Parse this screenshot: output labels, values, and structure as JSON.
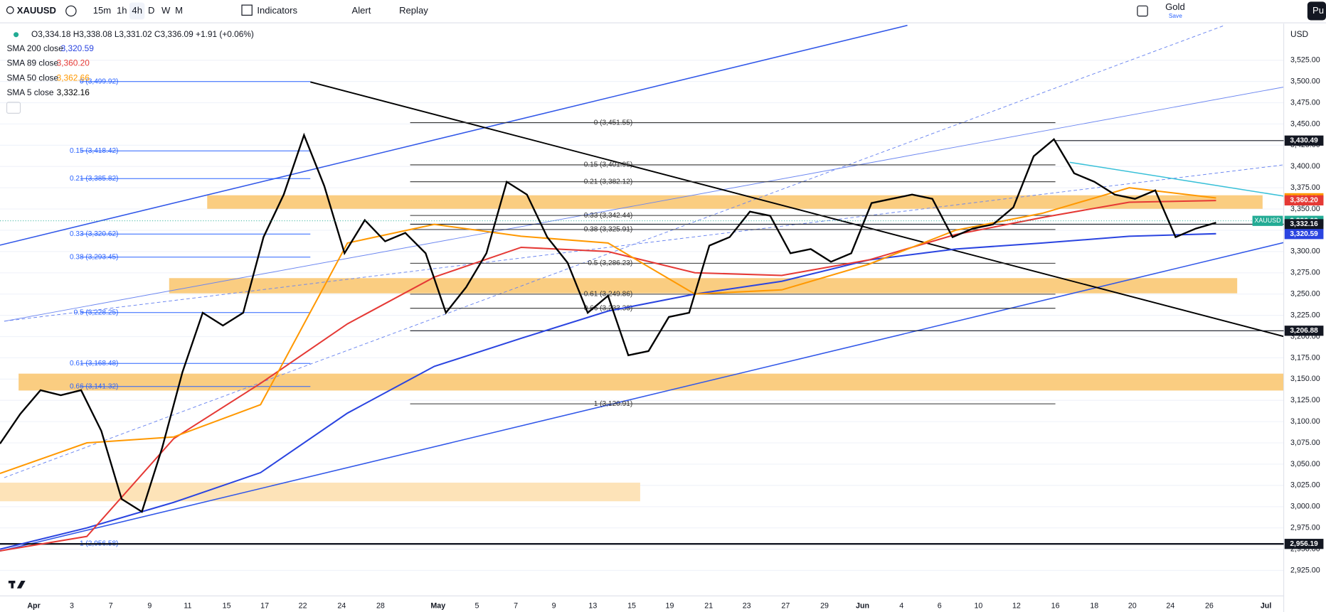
{
  "toolbar": {
    "symbol": "XAUUSD",
    "intervals": [
      "15m",
      "1h",
      "4h",
      "D",
      "W",
      "M"
    ],
    "indicators": "Indicators",
    "alert": "Alert",
    "replay": "Replay",
    "layout_name": "Gold",
    "layout_status": "Save",
    "publish": "Pu"
  },
  "legend": {
    "ohlc": "O3,334.18 H3,338.08 L3,331.02 C3,336.09 +1.91 (+0.06%)",
    "currency": "USD"
  },
  "chart_data": {
    "type": "line",
    "ylim": [
      2895,
      3566
    ],
    "yticks": [
      {
        "value": 2925,
        "label": "2,925.00"
      },
      {
        "value": 2950,
        "label": "2,950.00"
      },
      {
        "value": 2975,
        "label": "2,975.00"
      },
      {
        "value": 3000,
        "label": "3,000.00"
      },
      {
        "value": 3025,
        "label": "3,025.00"
      },
      {
        "value": 3050,
        "label": "3,050.00"
      },
      {
        "value": 3075,
        "label": "3,075.00"
      },
      {
        "value": 3100,
        "label": "3,100.00"
      },
      {
        "value": 3125,
        "label": "3,125.00"
      },
      {
        "value": 3150,
        "label": "3,150.00"
      },
      {
        "value": 3175,
        "label": "3,175.00"
      },
      {
        "value": 3200,
        "label": "3,200.00"
      },
      {
        "value": 3225,
        "label": "3,225.00"
      },
      {
        "value": 3250,
        "label": "3,250.00"
      },
      {
        "value": 3275,
        "label": "3,275.00"
      },
      {
        "value": 3300,
        "label": "3,300.00"
      },
      {
        "value": 3325,
        "label": "3,325.00"
      },
      {
        "value": 3350,
        "label": "3,350.00"
      },
      {
        "value": 3375,
        "label": "3,375.00"
      },
      {
        "value": 3400,
        "label": "3,400.00"
      },
      {
        "value": 3425,
        "label": "3,425.00"
      },
      {
        "value": 3450,
        "label": "3,450.00"
      },
      {
        "value": 3475,
        "label": "3,475.00"
      },
      {
        "value": 3500,
        "label": "3,500.00"
      },
      {
        "value": 3525,
        "label": "3,525.00"
      }
    ],
    "x_labels": [
      "Apr",
      "3",
      "7",
      "9",
      "11",
      "15",
      "17",
      "22",
      "24",
      "28",
      "May",
      "5",
      "7",
      "9",
      "13",
      "15",
      "19",
      "21",
      "23",
      "27",
      "29",
      "Jun",
      "4",
      "6",
      "10",
      "12",
      "16",
      "18",
      "20",
      "24",
      "26",
      "Jul"
    ],
    "series": [
      {
        "name": "SMA 200 close",
        "legend_value": "3,320.59",
        "color": "#2a44e0",
        "values": [
          2950,
          2975,
          3005,
          3040,
          3110,
          3165,
          3198,
          3230,
          3250,
          3265,
          3290,
          3303,
          3310,
          3318,
          3321
        ]
      },
      {
        "name": "SMA 89 close",
        "legend_value": "3,360.20",
        "color": "#e53935",
        "values": [
          2948,
          2965,
          3080,
          3145,
          3215,
          3270,
          3305,
          3300,
          3275,
          3272,
          3290,
          3320,
          3340,
          3358,
          3360
        ]
      },
      {
        "name": "SMA 50 close",
        "legend_value": "3,362.66",
        "color": "#ff9800",
        "values": [
          3039,
          3075,
          3082,
          3120,
          3310,
          3332,
          3318,
          3310,
          3250,
          3255,
          3285,
          3325,
          3345,
          3375,
          3363
        ]
      },
      {
        "name": "SMA 5 close",
        "legend_value": "3,332.16",
        "color": "#000000",
        "values": [
          3074,
          3109,
          3137,
          3131,
          3137,
          3089,
          3009,
          2994,
          3069,
          3158,
          3228,
          3213,
          3228,
          3317,
          3367,
          3437,
          3377,
          3298,
          3337,
          3312,
          3322,
          3298,
          3228,
          3258,
          3298,
          3382,
          3367,
          3317,
          3287,
          3228,
          3248,
          3178,
          3183,
          3223,
          3228,
          3307,
          3317,
          3347,
          3342,
          3298,
          3303,
          3288,
          3298,
          3357,
          3362,
          3367,
          3362,
          3317,
          3327,
          3332,
          3352,
          3412,
          3432,
          3392,
          3382,
          3367,
          3362,
          3372,
          3317,
          3327,
          3334
        ]
      }
    ],
    "fib_left": [
      {
        "label": "0 (3,499.92)",
        "value": 3499.92
      },
      {
        "label": "0.15 (3,418.42)",
        "value": 3418.42
      },
      {
        "label": "0.21 (3,385.82)",
        "value": 3385.82
      },
      {
        "label": "0.33 (3,320.62)",
        "value": 3320.62
      },
      {
        "label": "0.38 (3,293.45)",
        "value": 3293.45
      },
      {
        "label": "0.5 (3,228.25)",
        "value": 3228.25
      },
      {
        "label": "0.61 (3,168.48)",
        "value": 3168.48
      },
      {
        "label": "0.66 (3,141.32)",
        "value": 3141.32
      },
      {
        "label": "1 (2,956.58)",
        "value": 2956.58
      }
    ],
    "fib_right": [
      {
        "label": "0 (3,451.55)",
        "value": 3451.55
      },
      {
        "label": "0.15 (3,401.95)",
        "value": 3401.95
      },
      {
        "label": "0.21 (3,382.12)",
        "value": 3382.12
      },
      {
        "label": "0.33 (3,342.44)",
        "value": 3342.44
      },
      {
        "label": "0.38 (3,325.91)",
        "value": 3325.91
      },
      {
        "label": "0.5 (3,286.23)",
        "value": 3286.23
      },
      {
        "label": "0.61 (3,249.86)",
        "value": 3249.86
      },
      {
        "label": "0.66 (3,233.33)",
        "value": 3233.33
      },
      {
        "label": "1 (3,120.91)",
        "value": 3120.91
      }
    ],
    "price_tags": [
      {
        "label": "3,430.49",
        "value": 3430.49,
        "color": "#131722"
      },
      {
        "label": "3,362.66",
        "value": 3362.66,
        "color": "#ff9800"
      },
      {
        "label": "3,360.20",
        "value": 3360.2,
        "color": "#e53935"
      },
      {
        "label": "3,336.09",
        "value": 3336.09,
        "color": "#22ab94",
        "symbol": "XAUUSD"
      },
      {
        "label": "3,332.16",
        "value": 3332.16,
        "color": "#131722"
      },
      {
        "label": "3,320.59",
        "value": 3320.59,
        "color": "#2a44e0"
      },
      {
        "label": "3,206.88",
        "value": 3206.88,
        "color": "#131722"
      },
      {
        "label": "2,956.19",
        "value": 2956.19,
        "color": "#131722"
      }
    ]
  }
}
